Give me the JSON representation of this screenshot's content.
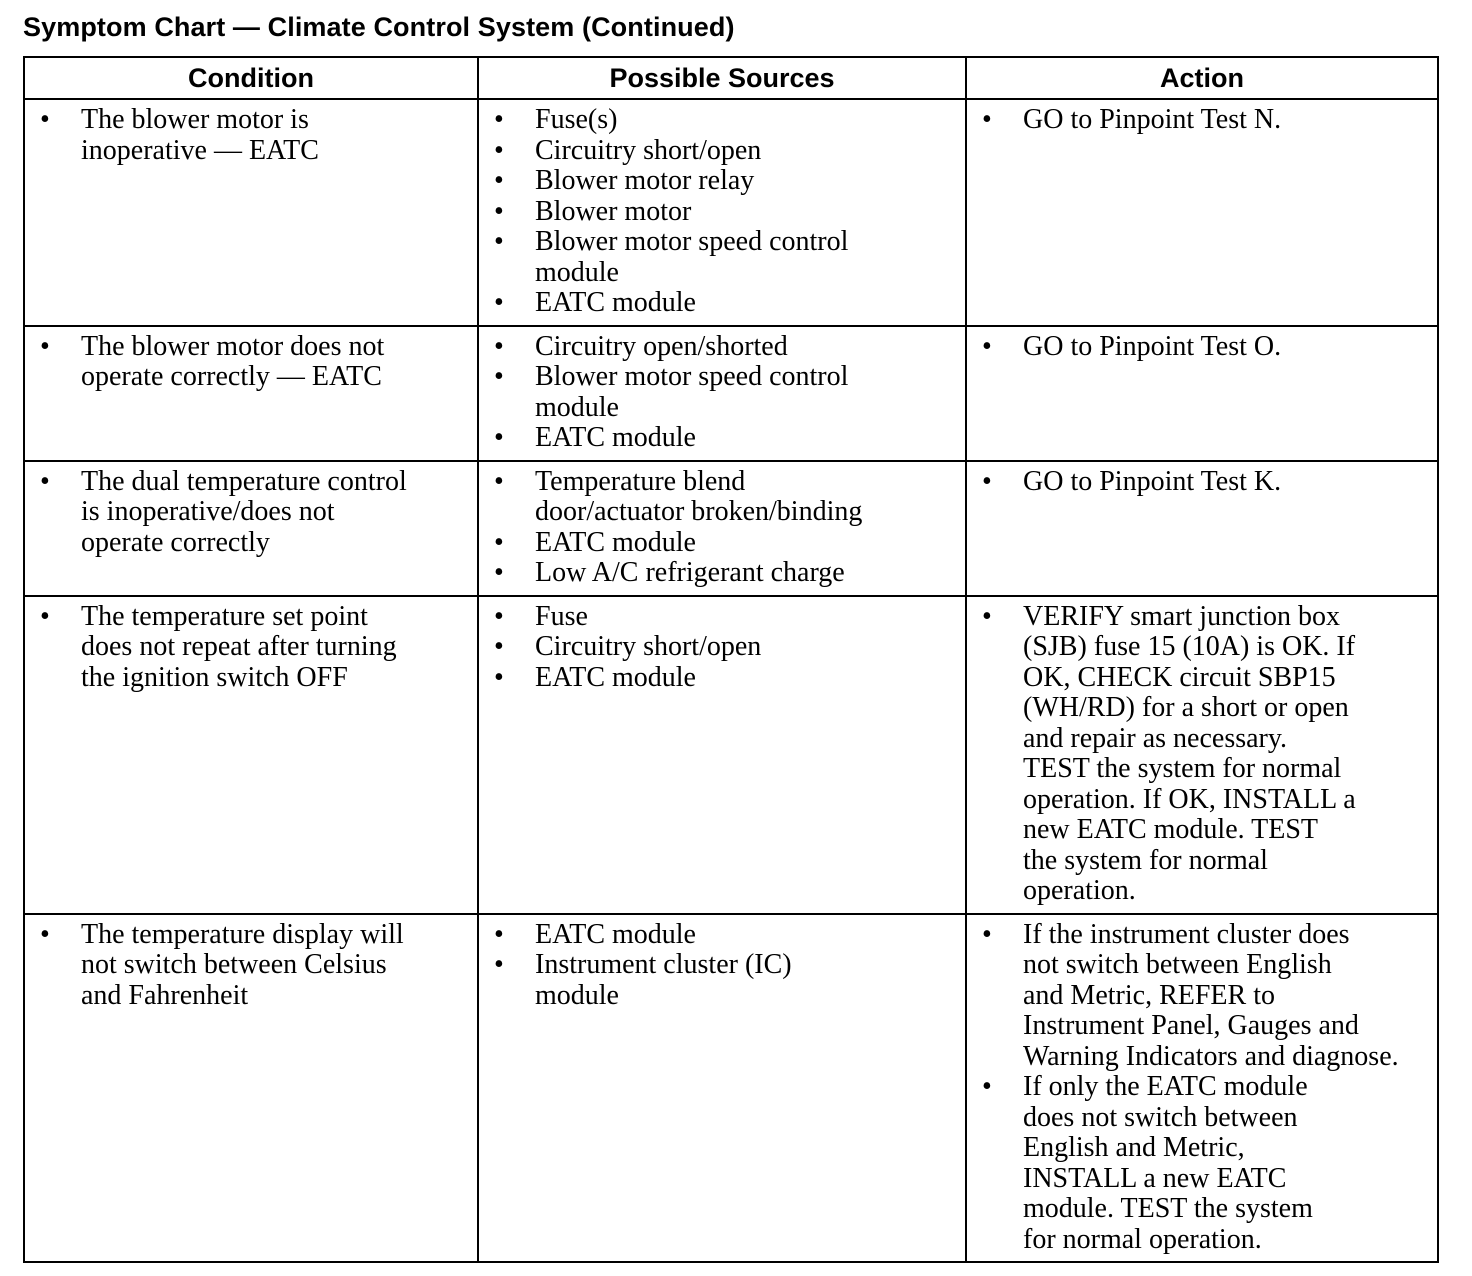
{
  "title": "Symptom Chart — Climate Control System (Continued)",
  "headers": [
    "Condition",
    "Possible Sources",
    "Action"
  ],
  "rows": [
    {
      "condition": [
        "The blower motor is\ninoperative — EATC"
      ],
      "sources": [
        "Fuse(s)",
        "Circuitry short/open",
        "Blower motor relay",
        "Blower motor",
        "Blower motor speed control\nmodule",
        "EATC module"
      ],
      "action": [
        "GO to Pinpoint Test N."
      ]
    },
    {
      "condition": [
        " The blower motor does not\noperate correctly — EATC"
      ],
      "sources": [
        "Circuitry open/shorted",
        "Blower motor speed control\nmodule",
        "EATC module"
      ],
      "action": [
        "GO to Pinpoint Test O."
      ]
    },
    {
      "condition": [
        "The dual temperature control\nis inoperative/does not\noperate correctly"
      ],
      "sources": [
        "Temperature blend\ndoor/actuator broken/binding",
        "EATC module",
        "Low A/C refrigerant charge"
      ],
      "action": [
        "GO to Pinpoint Test K."
      ]
    },
    {
      "condition": [
        "The temperature set point\ndoes not repeat after turning\nthe ignition switch OFF"
      ],
      "sources": [
        "Fuse",
        "Circuitry short/open",
        "EATC module"
      ],
      "action": [
        "VERIFY smart junction box\n(SJB) fuse 15 (10A) is OK. If\nOK, CHECK circuit SBP15\n(WH/RD) for a short or open\nand repair as necessary.\nTEST the system for normal\noperation. If OK, INSTALL a\nnew EATC module. TEST\nthe system for normal\noperation."
      ]
    },
    {
      "condition": [
        "The temperature display will\nnot switch between Celsius\nand Fahrenheit"
      ],
      "sources": [
        "EATC module",
        "Instrument cluster (IC)\nmodule"
      ],
      "action": [
        "If the instrument cluster does\nnot switch between English\nand Metric, REFER to\nInstrument Panel, Gauges and\nWarning Indicators and diagnose.",
        "If only the EATC module\ndoes not switch between\nEnglish and Metric,\nINSTALL a new EATC\nmodule. TEST the system\nfor normal operation."
      ]
    }
  ],
  "bullet": "•"
}
